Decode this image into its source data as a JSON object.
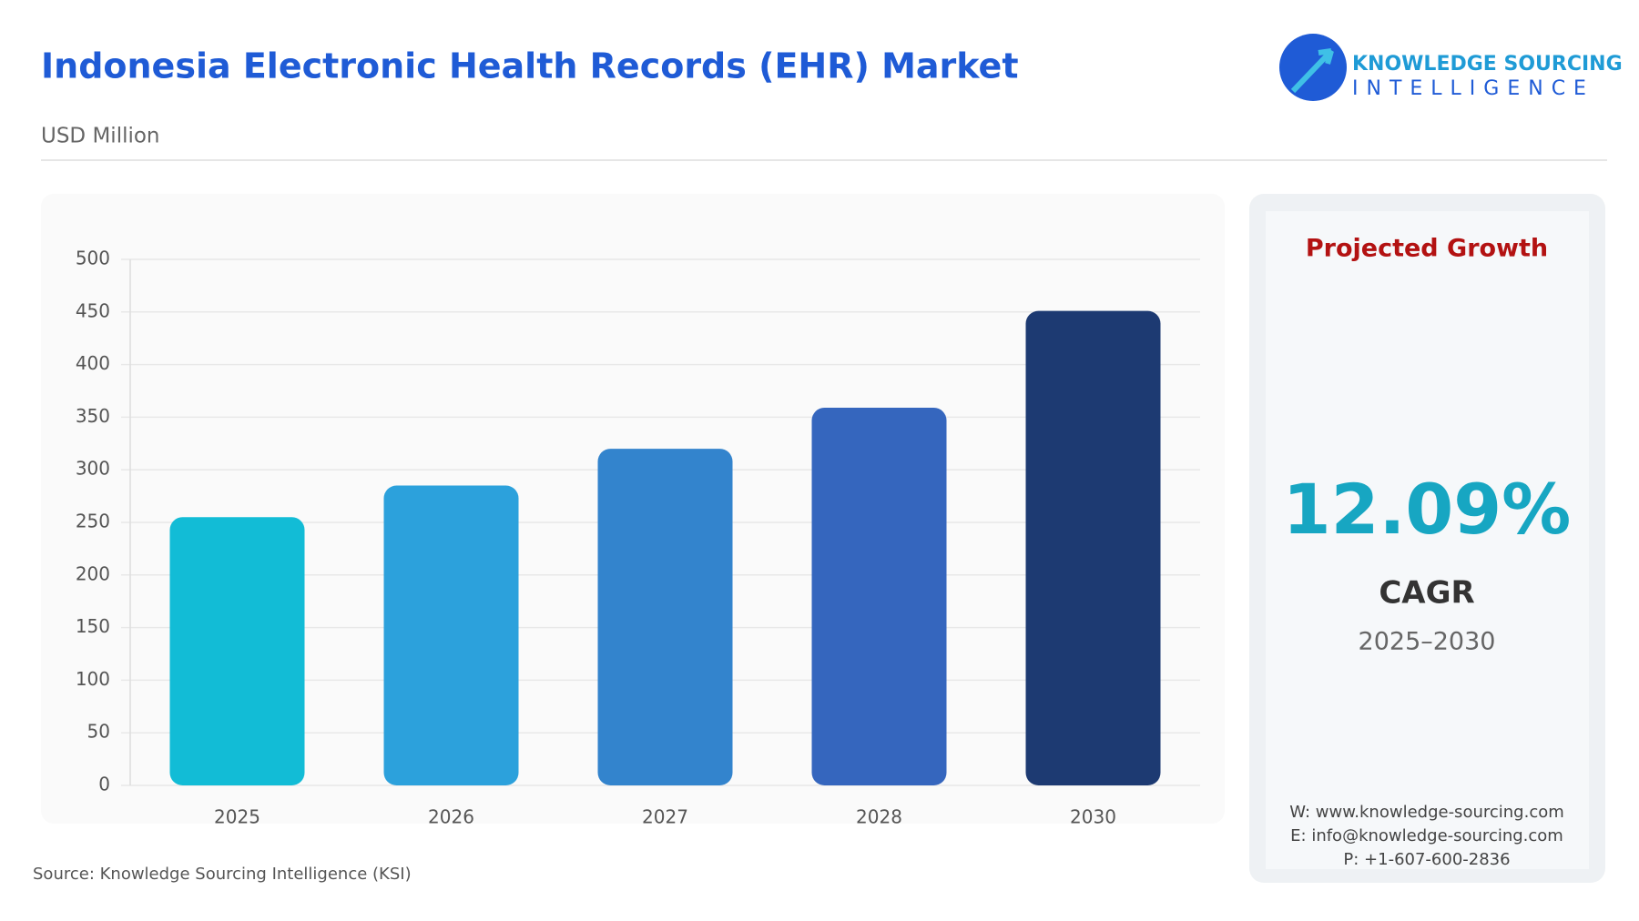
{
  "header": {
    "title": "Indonesia Electronic Health Records (EHR) Market",
    "subtitle": "USD Million",
    "logo_line1": "KNOWLEDGE SOURCING",
    "logo_line2": "INTELLIGENCE"
  },
  "chart_data": {
    "type": "bar",
    "categories": [
      "2025",
      "2026",
      "2027",
      "2028",
      "2030"
    ],
    "values": [
      255,
      285,
      320,
      359,
      451
    ],
    "colors": [
      "#12bcd6",
      "#2ca1dc",
      "#3384cd",
      "#3566be",
      "#1d3a72"
    ],
    "ylim": [
      0,
      500
    ],
    "yticks": [
      0,
      50,
      100,
      150,
      200,
      250,
      300,
      350,
      400,
      450,
      500
    ],
    "grid": true
  },
  "growth_panel": {
    "heading": "Projected Growth",
    "cagr_value": "12.09%",
    "cagr_label": "CAGR",
    "period": "2025–2030",
    "website": "W: www.knowledge-sourcing.com",
    "email": "E: info@knowledge-sourcing.com",
    "phone": "P: +1-607-600-2836"
  },
  "source": "Source: Knowledge Sourcing Intelligence (KSI)"
}
